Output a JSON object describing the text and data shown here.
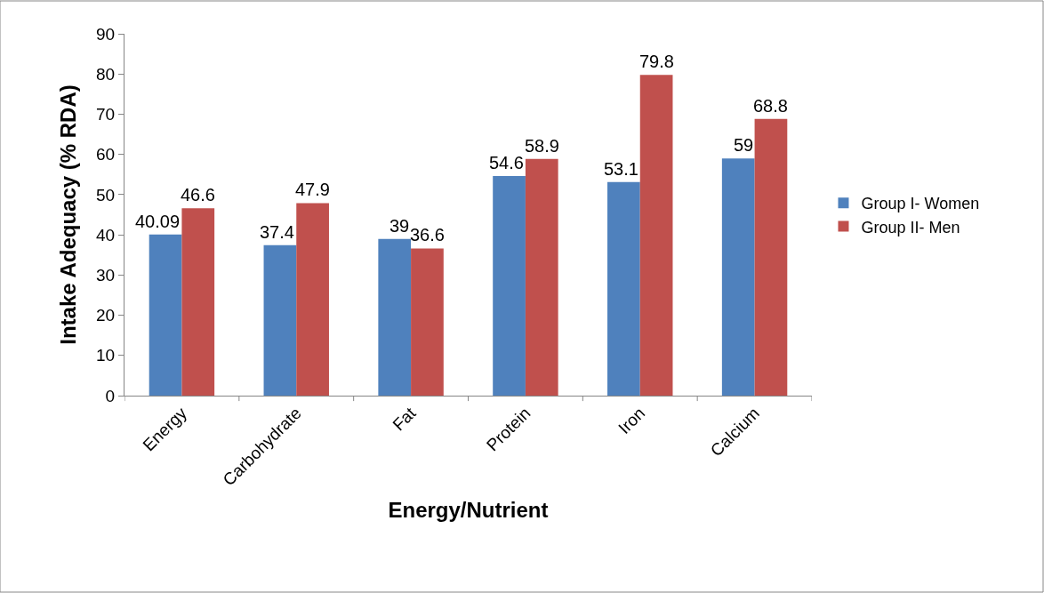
{
  "chart_data": {
    "type": "bar",
    "xlabel": "Energy/Nutrient",
    "ylabel": "Intake Adequacy (% RDA)",
    "categories": [
      "Energy",
      "Carbohydrate",
      "Fat",
      "Protein",
      "Iron",
      "Calcium"
    ],
    "series": [
      {
        "name": "Group I- Women",
        "color": "#4f81bd",
        "values": [
          40.09,
          37.4,
          39,
          54.6,
          53.1,
          59
        ]
      },
      {
        "name": "Group II- Men",
        "color": "#c0504d",
        "values": [
          46.6,
          47.9,
          36.6,
          58.9,
          79.8,
          68.8
        ]
      }
    ],
    "ylim": [
      0,
      90
    ],
    "yticks": [
      0,
      10,
      20,
      30,
      40,
      50,
      60,
      70,
      80,
      90
    ],
    "data_labels": true,
    "legend": "right"
  }
}
